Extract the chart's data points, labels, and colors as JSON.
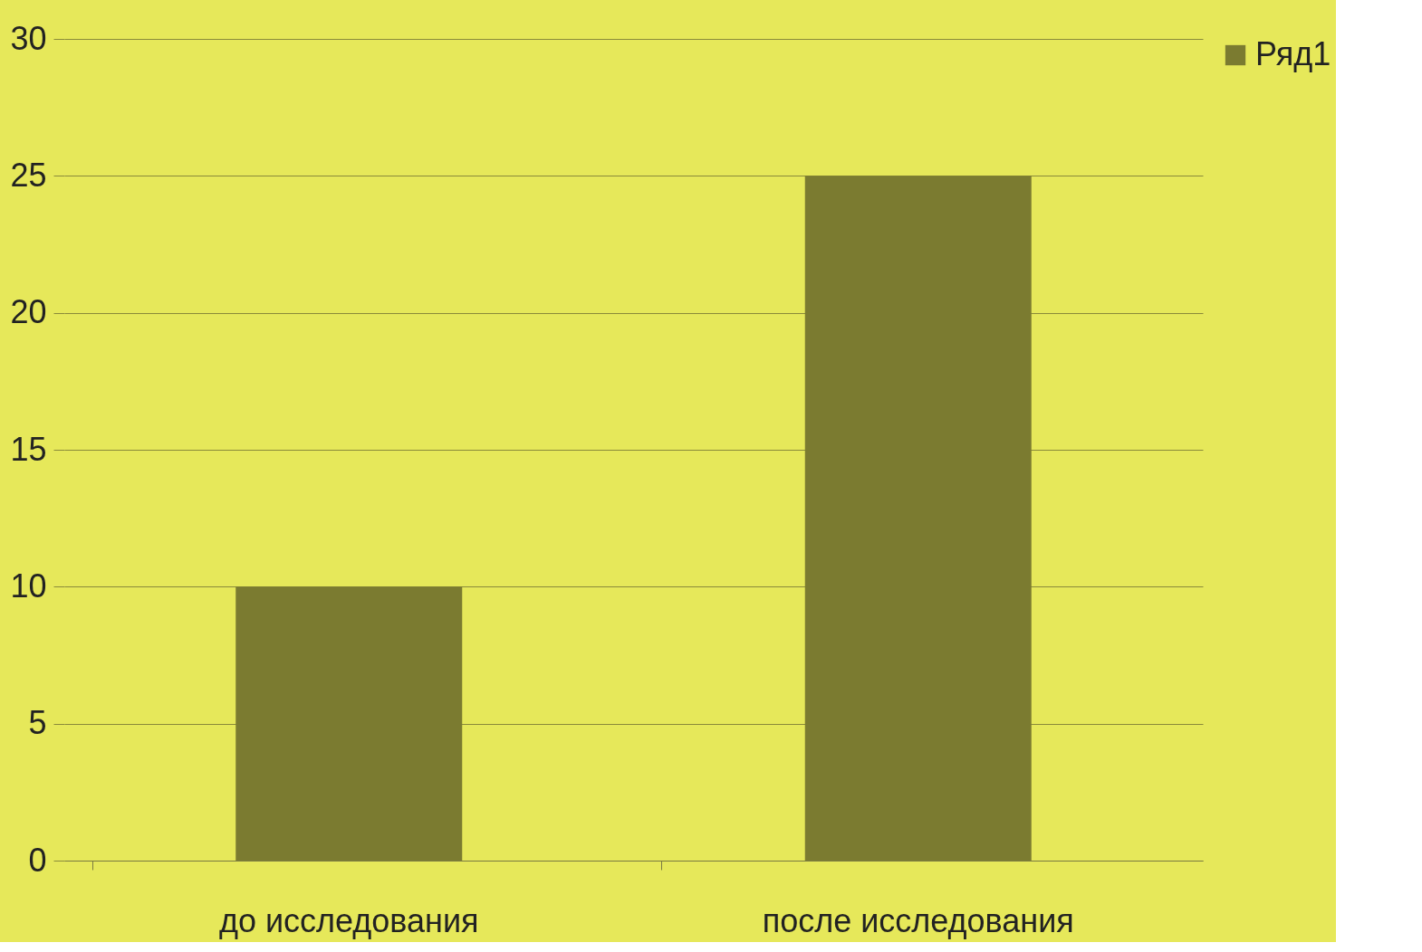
{
  "chart_data": {
    "type": "bar",
    "categories": [
      "до исследования",
      "после исследования"
    ],
    "series": [
      {
        "name": "Ряд1",
        "color": "#7b7b30",
        "values": [
          10,
          25
        ]
      }
    ],
    "ylim": [
      0,
      30
    ],
    "yticks": [
      0,
      5,
      10,
      15,
      20,
      25,
      30
    ],
    "grid": "y",
    "legend": "right"
  }
}
